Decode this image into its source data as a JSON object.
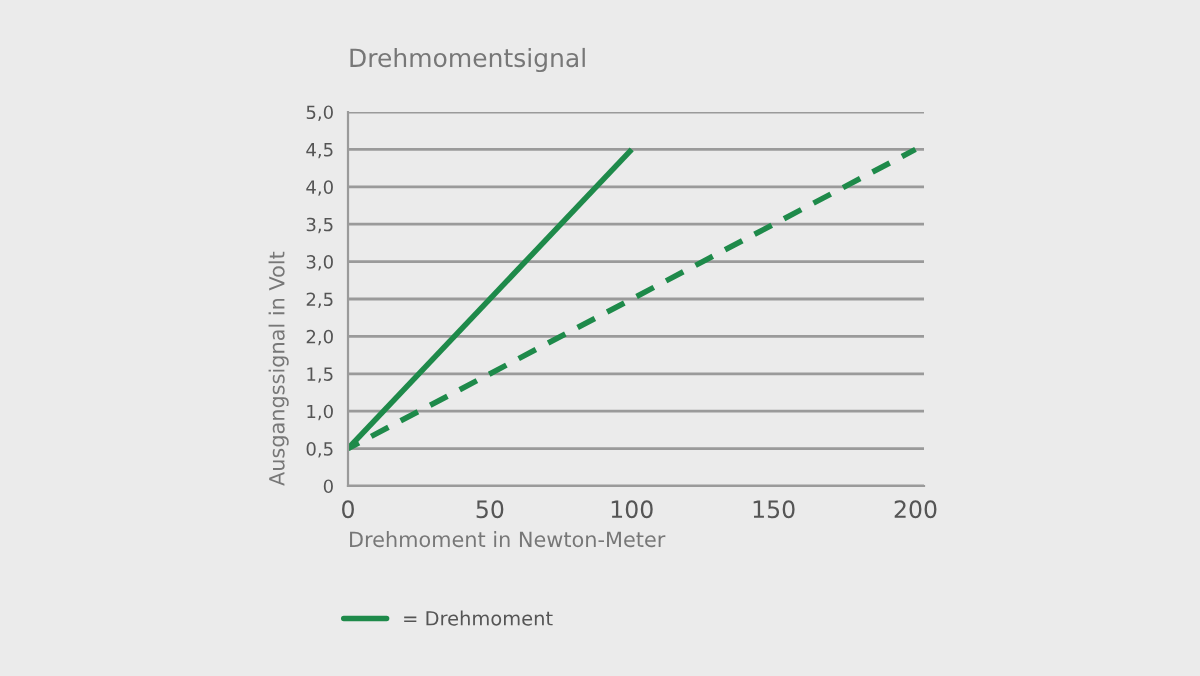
{
  "chart_data": {
    "type": "line",
    "title": "Drehmomentsignal",
    "xlabel": "Drehmoment in Newton-Meter",
    "ylabel": "Ausgangssignal in Volt",
    "series": [
      {
        "name": "= Drehmoment",
        "color": "#1e8a4a",
        "x": [
          0,
          100
        ],
        "values": [
          0.5,
          4.5
        ],
        "line_style": "solid"
      },
      {
        "color": "#1e8a4a",
        "x": [
          0,
          200
        ],
        "values": [
          0.5,
          4.5
        ],
        "line_style": "dashed"
      }
    ],
    "xlim": [
      0,
      203
    ],
    "xticks": [
      0,
      50,
      100,
      150,
      200
    ],
    "ylim": [
      0,
      5
    ],
    "yticks": [
      {
        "value": 0,
        "label": "0"
      },
      {
        "value": 0.5,
        "label": "0,5"
      },
      {
        "value": 1,
        "label": "1,0"
      },
      {
        "value": 1.5,
        "label": "1,5"
      },
      {
        "value": 2,
        "label": "2,0"
      },
      {
        "value": 2.5,
        "label": "2,5"
      },
      {
        "value": 3,
        "label": "3,0"
      },
      {
        "value": 3.5,
        "label": "3,5"
      },
      {
        "value": 4,
        "label": "4,0"
      },
      {
        "value": 4.5,
        "label": "4,5"
      },
      {
        "value": 5,
        "label": "5,0"
      }
    ],
    "grid": "y",
    "legend": "bottom left",
    "marker": "none"
  }
}
